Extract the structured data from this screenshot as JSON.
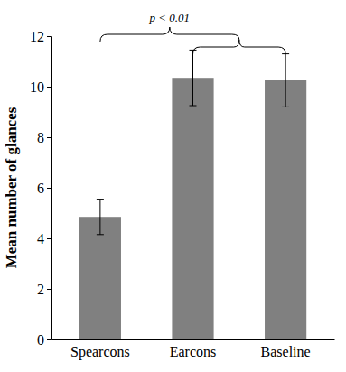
{
  "chart_data": {
    "type": "bar",
    "categories": [
      "Spearcons",
      "Earcons",
      "Baseline"
    ],
    "values": [
      4.85,
      10.35,
      10.25
    ],
    "errors": [
      0.7,
      1.1,
      1.05
    ],
    "color": "#808080",
    "ylabel": "Mean number of glances",
    "annotation": "p < 0.01",
    "ylim": [
      0,
      12
    ],
    "yticks": [
      0,
      2,
      4,
      6,
      8,
      10,
      12
    ],
    "grid": false
  }
}
